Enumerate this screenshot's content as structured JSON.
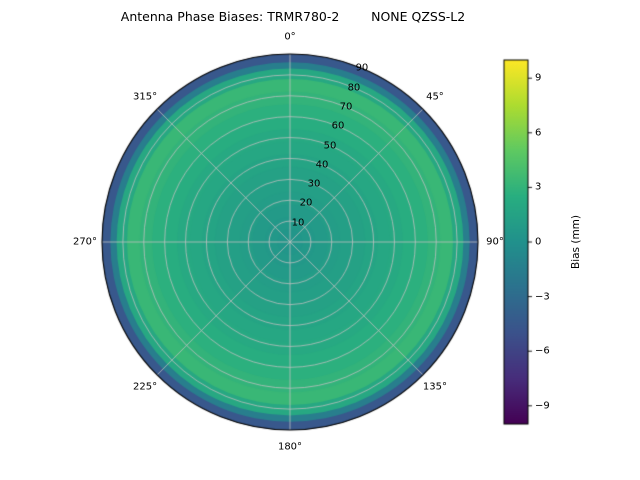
{
  "title": "Antenna Phase Biases: TRMR780-2        NONE QZSS-L2",
  "colors": {
    "background": "#ffffff",
    "grid": "#c0c0c0",
    "outline": "#000000",
    "text": "#000000"
  },
  "chart_data": {
    "type": "heatmap",
    "projection": "polar",
    "title": "Antenna Phase Biases: TRMR780-2        NONE QZSS-L2",
    "theta_zero_location": "N",
    "theta_direction": "clockwise",
    "r_max": 90,
    "radial_ticks": [
      10,
      20,
      30,
      40,
      50,
      60,
      70,
      80,
      90
    ],
    "radial_label_angle_deg": 22.5,
    "angle_labels": [
      {
        "deg": 0,
        "label": "0°"
      },
      {
        "deg": 45,
        "label": "45°"
      },
      {
        "deg": 90,
        "label": "90°"
      },
      {
        "deg": 135,
        "label": "135°"
      },
      {
        "deg": 180,
        "label": "180°"
      },
      {
        "deg": 225,
        "label": "225°"
      },
      {
        "deg": 270,
        "label": "270°"
      },
      {
        "deg": 315,
        "label": "315°"
      }
    ],
    "rings": [
      {
        "r0": 0,
        "r1": 6,
        "bias": 0.4
      },
      {
        "r0": 6,
        "r1": 12,
        "bias": 0.6
      },
      {
        "r0": 12,
        "r1": 18,
        "bias": 0.8
      },
      {
        "r0": 18,
        "r1": 24,
        "bias": 1.0
      },
      {
        "r0": 24,
        "r1": 30,
        "bias": 1.2
      },
      {
        "r0": 30,
        "r1": 36,
        "bias": 1.4
      },
      {
        "r0": 36,
        "r1": 42,
        "bias": 1.6
      },
      {
        "r0": 42,
        "r1": 48,
        "bias": 1.9
      },
      {
        "r0": 48,
        "r1": 54,
        "bias": 2.1
      },
      {
        "r0": 54,
        "r1": 60,
        "bias": 2.4
      },
      {
        "r0": 60,
        "r1": 66,
        "bias": 2.7
      },
      {
        "r0": 66,
        "r1": 72,
        "bias": 3.0
      },
      {
        "r0": 72,
        "r1": 78,
        "bias": 3.3
      },
      {
        "r0": 78,
        "r1": 83,
        "bias": 2.0
      },
      {
        "r0": 83,
        "r1": 86,
        "bias": -1.5
      },
      {
        "r0": 86,
        "r1": 90,
        "bias": -4.5
      }
    ],
    "colorbar": {
      "label": "Bias (mm)",
      "tick_values": [
        9,
        6,
        3,
        0,
        -3,
        -6,
        -9
      ],
      "vmin": -10,
      "vmax": 10
    },
    "colormap": {
      "name": "viridis",
      "stops": [
        [
          0.0,
          "#440154"
        ],
        [
          0.125,
          "#472d7b"
        ],
        [
          0.25,
          "#3b528b"
        ],
        [
          0.375,
          "#2c728e"
        ],
        [
          0.5,
          "#21918c"
        ],
        [
          0.625,
          "#28ae80"
        ],
        [
          0.75,
          "#5ec962"
        ],
        [
          0.875,
          "#addc30"
        ],
        [
          1.0,
          "#fde725"
        ]
      ]
    }
  }
}
